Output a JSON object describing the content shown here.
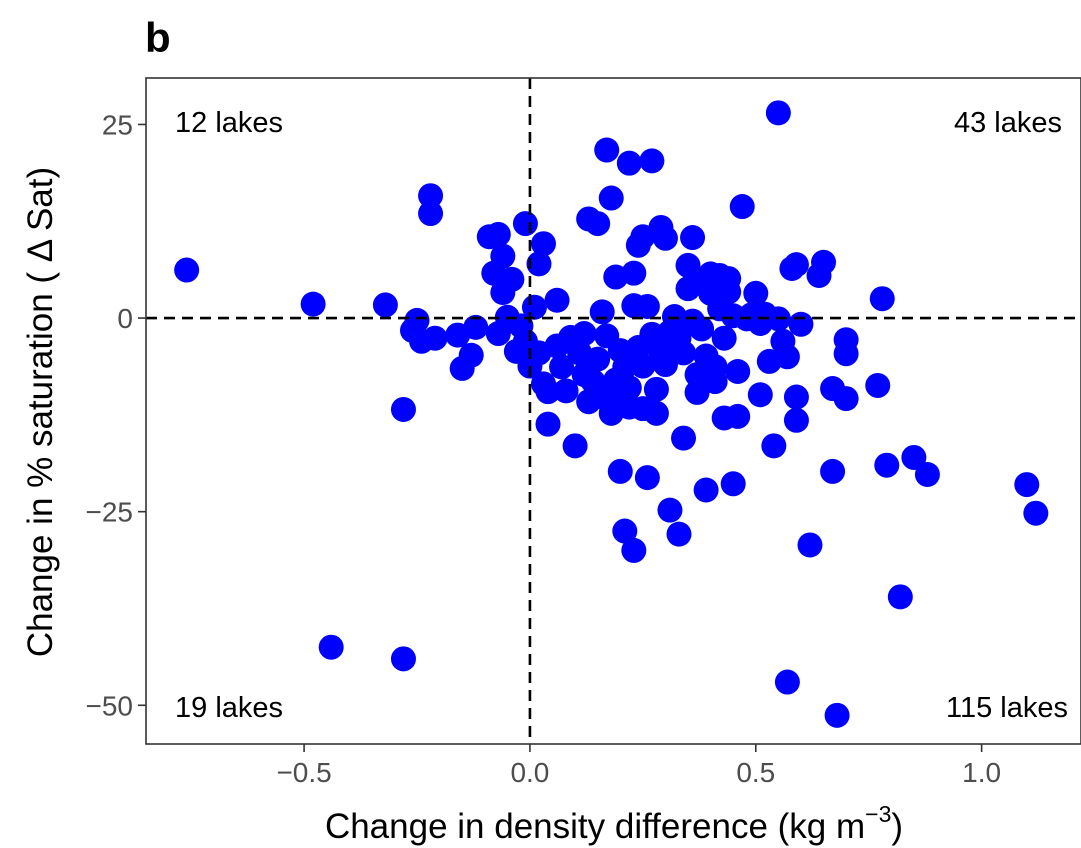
{
  "panel_label": "b",
  "chart_data": {
    "type": "scatter",
    "xlabel_main": "Change in density difference (kg m",
    "xlabel_sup": "−3",
    "xlabel_close": ")",
    "ylabel": "Change in % saturation ( Δ Sat)",
    "xlim": [
      -0.85,
      1.22
    ],
    "ylim": [
      -55,
      31
    ],
    "x_ticks": [
      -0.5,
      0.0,
      0.5,
      1.0
    ],
    "x_tick_labels": [
      "−0.5",
      "0.0",
      "0.5",
      "1.0"
    ],
    "y_ticks": [
      -50,
      -25,
      0,
      25
    ],
    "y_tick_labels": [
      "−50",
      "−25",
      "0",
      "25"
    ],
    "reference_lines": {
      "x": 0,
      "y": 0,
      "style": "dashed"
    },
    "grid": false,
    "point_color": "#0000ff",
    "annotations": {
      "top_left": "12 lakes",
      "top_right": "43 lakes",
      "bottom_left": "19 lakes",
      "bottom_right": "115 lakes"
    },
    "points": [
      [
        -0.76,
        6.2
      ],
      [
        -0.48,
        1.8
      ],
      [
        -0.32,
        1.7
      ],
      [
        -0.28,
        -11.8
      ],
      [
        -0.44,
        -42.5
      ],
      [
        -0.28,
        -44.0
      ],
      [
        -0.22,
        15.8
      ],
      [
        -0.22,
        13.5
      ],
      [
        -0.25,
        -0.3
      ],
      [
        -0.26,
        -1.6
      ],
      [
        -0.24,
        -3.0
      ],
      [
        -0.21,
        -2.6
      ],
      [
        -0.16,
        -2.2
      ],
      [
        -0.15,
        -6.5
      ],
      [
        -0.13,
        -4.8
      ],
      [
        -0.12,
        -1.2
      ],
      [
        -0.09,
        10.5
      ],
      [
        -0.07,
        10.8
      ],
      [
        -0.06,
        8.0
      ],
      [
        -0.08,
        5.8
      ],
      [
        -0.06,
        3.3
      ],
      [
        -0.04,
        5.0
      ],
      [
        -0.05,
        0.1
      ],
      [
        -0.07,
        -2.0
      ],
      [
        -0.03,
        -4.3
      ],
      [
        -0.01,
        -3.0
      ],
      [
        0.0,
        -6.2
      ],
      [
        -0.02,
        -1.0
      ],
      [
        -0.01,
        12.2
      ],
      [
        0.01,
        1.4
      ],
      [
        0.02,
        -4.5
      ],
      [
        0.03,
        9.6
      ],
      [
        0.02,
        7.0
      ],
      [
        0.03,
        -8.5
      ],
      [
        0.04,
        -9.5
      ],
      [
        0.04,
        -13.7
      ],
      [
        0.06,
        2.3
      ],
      [
        0.06,
        -3.6
      ],
      [
        0.07,
        -6.3
      ],
      [
        0.08,
        -9.4
      ],
      [
        0.09,
        -2.5
      ],
      [
        0.1,
        -16.5
      ],
      [
        0.11,
        -4.5
      ],
      [
        0.12,
        -2.0
      ],
      [
        0.12,
        -7.3
      ],
      [
        0.13,
        12.8
      ],
      [
        0.13,
        -10.8
      ],
      [
        0.14,
        -8.2
      ],
      [
        0.15,
        12.2
      ],
      [
        0.15,
        -5.3
      ],
      [
        0.16,
        -10.2
      ],
      [
        0.16,
        0.8
      ],
      [
        0.17,
        -2.3
      ],
      [
        0.17,
        21.7
      ],
      [
        0.18,
        -12.3
      ],
      [
        0.18,
        15.5
      ],
      [
        0.19,
        -8.0
      ],
      [
        0.19,
        5.3
      ],
      [
        0.2,
        -10.2
      ],
      [
        0.2,
        -4.2
      ],
      [
        0.2,
        -19.8
      ],
      [
        0.21,
        -6.3
      ],
      [
        0.21,
        -27.5
      ],
      [
        0.22,
        20.0
      ],
      [
        0.22,
        -11.5
      ],
      [
        0.22,
        -9.0
      ],
      [
        0.23,
        -30.0
      ],
      [
        0.23,
        5.8
      ],
      [
        0.23,
        1.6
      ],
      [
        0.24,
        9.4
      ],
      [
        0.24,
        -3.8
      ],
      [
        0.25,
        10.5
      ],
      [
        0.25,
        -11.7
      ],
      [
        0.25,
        -6.2
      ],
      [
        0.26,
        1.5
      ],
      [
        0.26,
        -20.6
      ],
      [
        0.27,
        20.3
      ],
      [
        0.27,
        -2.1
      ],
      [
        0.28,
        -9.2
      ],
      [
        0.28,
        -12.3
      ],
      [
        0.29,
        -4.4
      ],
      [
        0.29,
        11.7
      ],
      [
        0.3,
        10.3
      ],
      [
        0.3,
        -6.0
      ],
      [
        0.31,
        -24.8
      ],
      [
        0.31,
        -1.8
      ],
      [
        0.32,
        0.2
      ],
      [
        0.33,
        -27.9
      ],
      [
        0.33,
        -2.6
      ],
      [
        0.34,
        -15.5
      ],
      [
        0.34,
        -4.5
      ],
      [
        0.35,
        6.8
      ],
      [
        0.35,
        3.8
      ],
      [
        0.36,
        -0.4
      ],
      [
        0.36,
        10.4
      ],
      [
        0.37,
        -7.3
      ],
      [
        0.37,
        -9.6
      ],
      [
        0.38,
        4.9
      ],
      [
        0.38,
        -1.4
      ],
      [
        0.39,
        -4.9
      ],
      [
        0.39,
        -22.2
      ],
      [
        0.4,
        3.2
      ],
      [
        0.4,
        5.7
      ],
      [
        0.41,
        -8.2
      ],
      [
        0.41,
        -6.3
      ],
      [
        0.42,
        1.2
      ],
      [
        0.42,
        5.5
      ],
      [
        0.43,
        -12.9
      ],
      [
        0.43,
        -2.6
      ],
      [
        0.44,
        3.4
      ],
      [
        0.44,
        5.1
      ],
      [
        0.45,
        -21.4
      ],
      [
        0.45,
        0.3
      ],
      [
        0.46,
        -12.7
      ],
      [
        0.46,
        -6.9
      ],
      [
        0.47,
        14.4
      ],
      [
        0.48,
        -0.1
      ],
      [
        0.49,
        0.4
      ],
      [
        0.5,
        3.2
      ],
      [
        0.51,
        -0.7
      ],
      [
        0.51,
        -9.9
      ],
      [
        0.52,
        0.5
      ],
      [
        0.53,
        -5.6
      ],
      [
        0.54,
        -16.5
      ],
      [
        0.55,
        -0.1
      ],
      [
        0.55,
        26.5
      ],
      [
        0.56,
        -3.0
      ],
      [
        0.57,
        -5.0
      ],
      [
        0.57,
        -47.0
      ],
      [
        0.58,
        6.4
      ],
      [
        0.59,
        6.9
      ],
      [
        0.59,
        -13.2
      ],
      [
        0.59,
        -10.2
      ],
      [
        0.6,
        -0.8
      ],
      [
        0.62,
        -29.3
      ],
      [
        0.64,
        5.5
      ],
      [
        0.65,
        7.2
      ],
      [
        0.67,
        -9.1
      ],
      [
        0.67,
        -19.8
      ],
      [
        0.68,
        -51.3
      ],
      [
        0.7,
        -10.4
      ],
      [
        0.7,
        -2.8
      ],
      [
        0.7,
        -4.6
      ],
      [
        0.77,
        -8.7
      ],
      [
        0.78,
        2.5
      ],
      [
        0.79,
        -19.0
      ],
      [
        0.82,
        -36.0
      ],
      [
        0.85,
        -18.0
      ],
      [
        0.88,
        -20.2
      ],
      [
        1.1,
        -21.5
      ],
      [
        1.12,
        -25.2
      ]
    ]
  }
}
